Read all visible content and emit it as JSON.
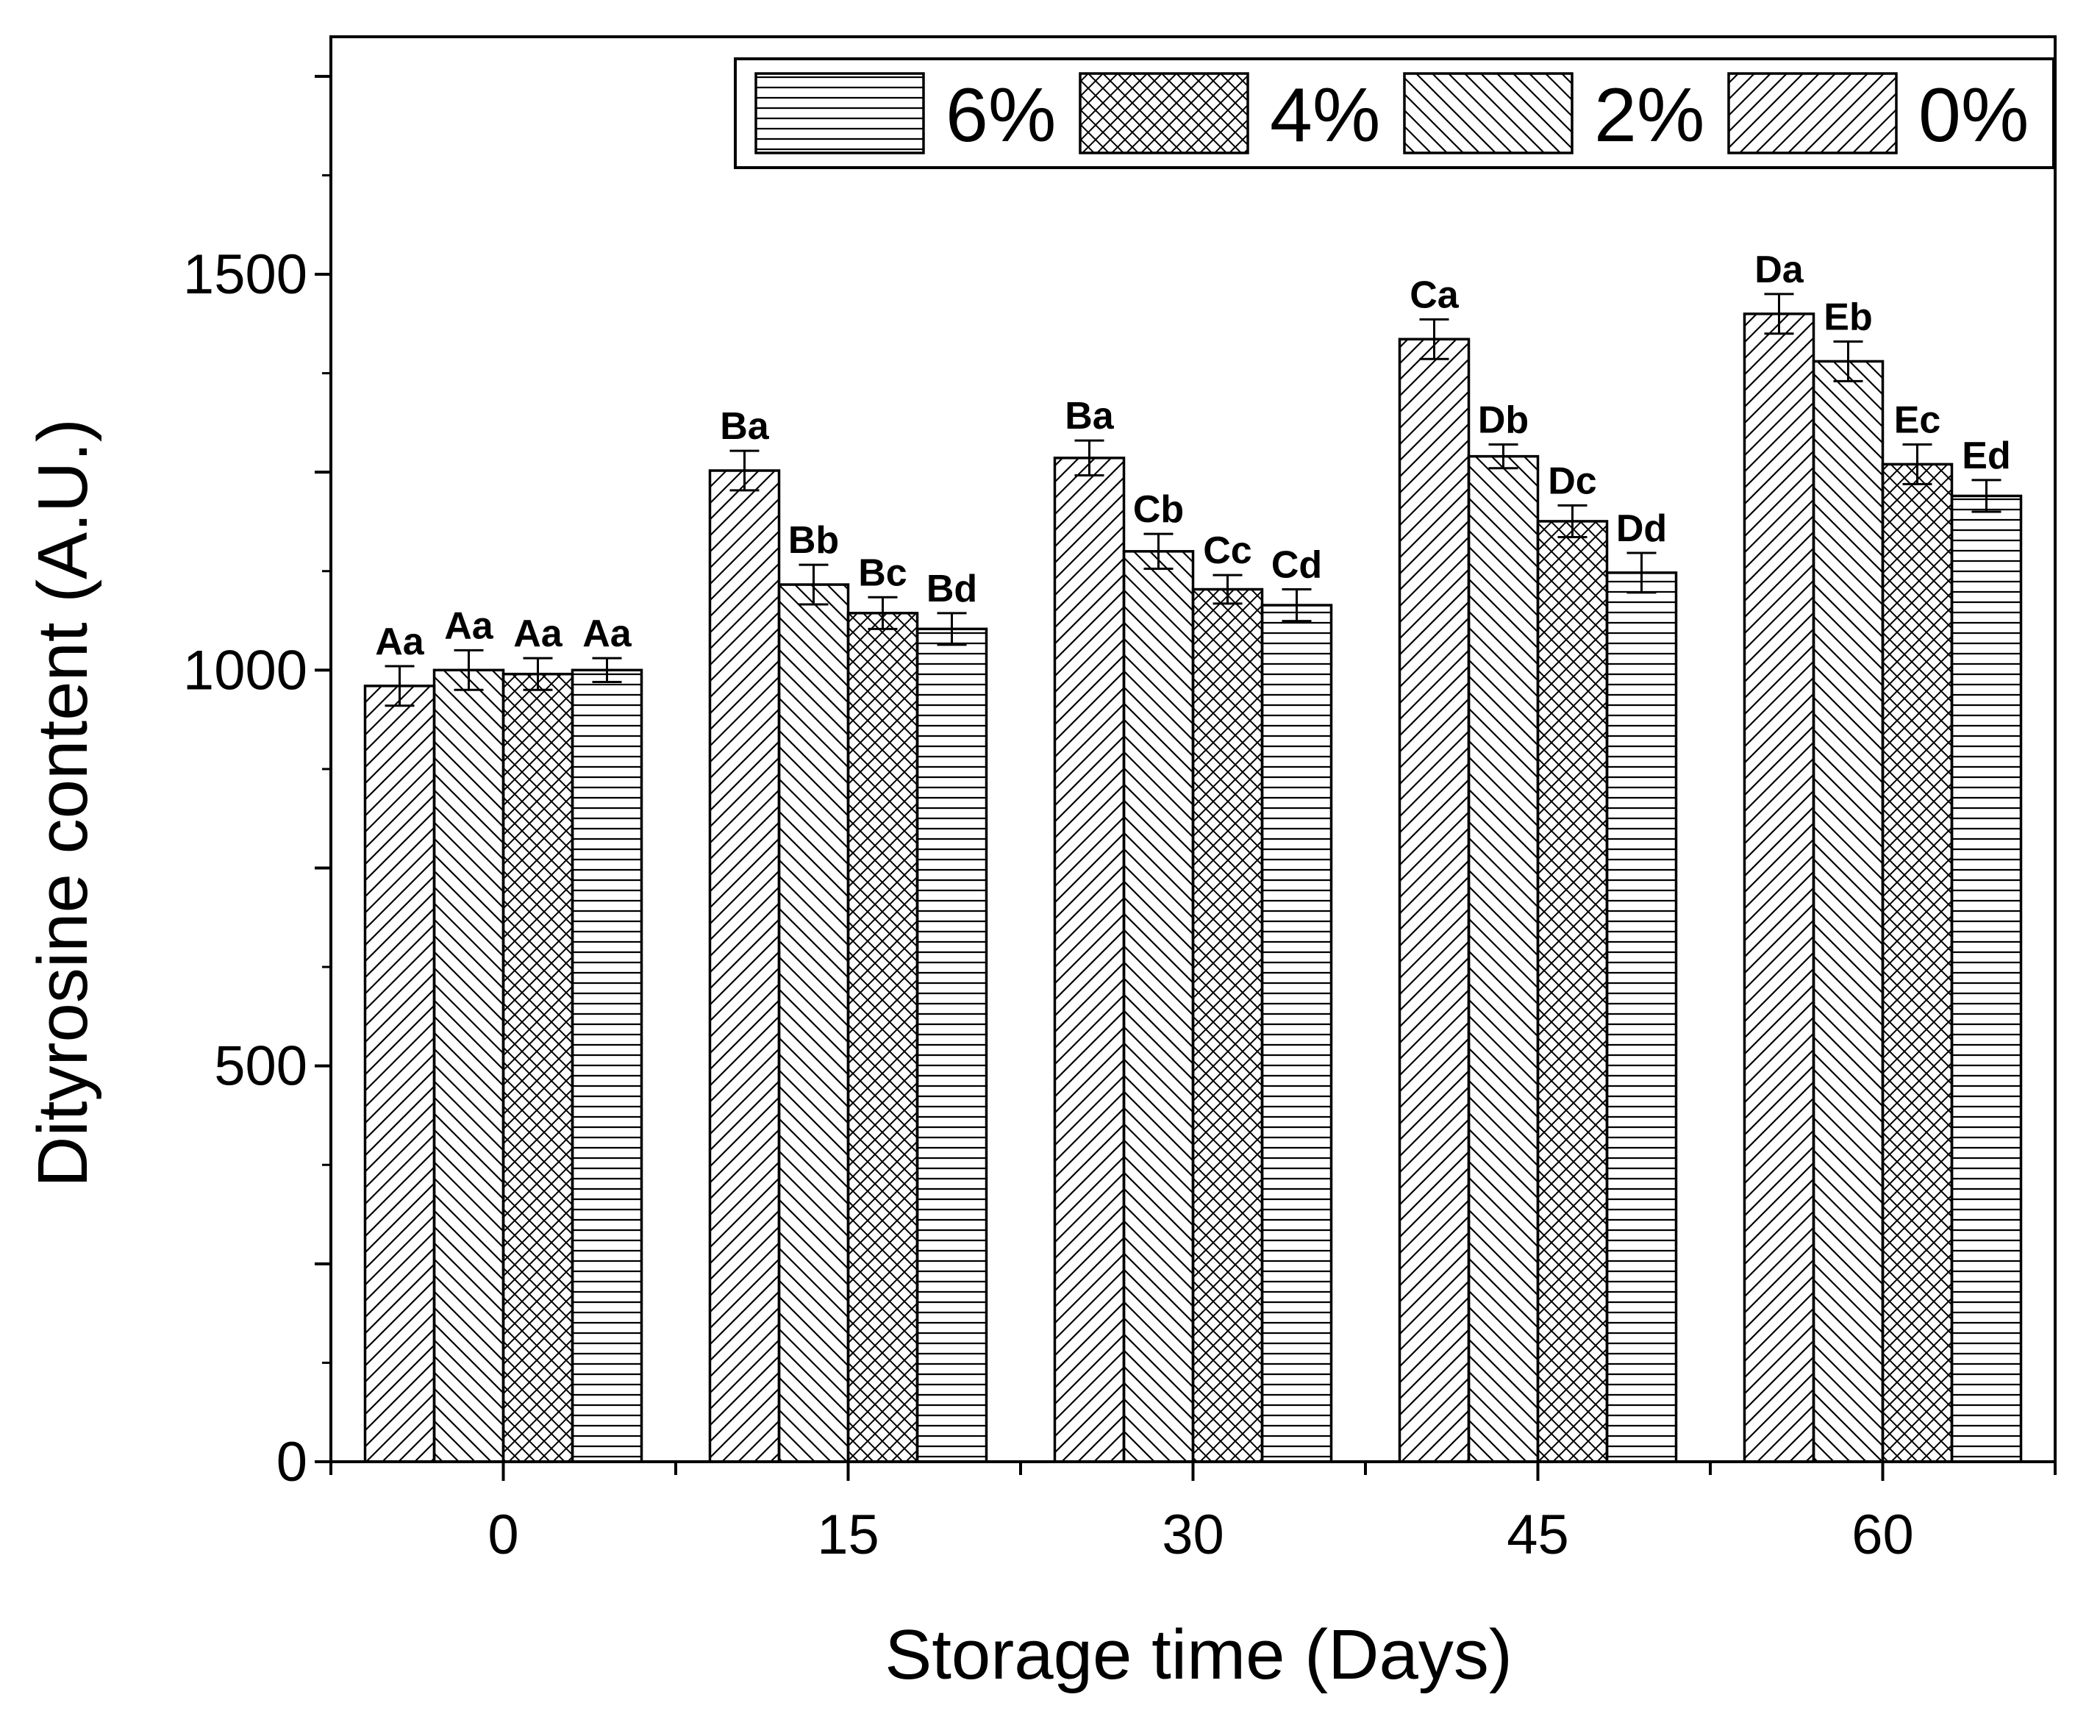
{
  "chart_data": {
    "type": "bar",
    "title": "",
    "xlabel": "Storage time (Days)",
    "ylabel": "Dityrosine content (A.U.)",
    "ylim": [
      0,
      1800
    ],
    "yticks": [
      0,
      500,
      1000,
      1500
    ],
    "categories": [
      "0",
      "15",
      "30",
      "45",
      "60"
    ],
    "grid": false,
    "legend_position": "top-right",
    "legend_order": [
      "6%",
      "4%",
      "2%",
      "0%"
    ],
    "series": [
      {
        "name": "0%",
        "pattern": "diagonal-forward",
        "values": [
          980,
          1252,
          1268,
          1418,
          1450
        ],
        "errors": [
          25,
          25,
          22,
          25,
          25
        ],
        "labels": [
          "Aa",
          "Ba",
          "Ba",
          "Ca",
          "Da"
        ]
      },
      {
        "name": "2%",
        "pattern": "diagonal-backward",
        "values": [
          1000,
          1108,
          1150,
          1270,
          1390
        ],
        "errors": [
          25,
          25,
          22,
          15,
          25
        ],
        "labels": [
          "Aa",
          "Bb",
          "Cb",
          "Db",
          "Eb"
        ]
      },
      {
        "name": "4%",
        "pattern": "crosshatch",
        "values": [
          995,
          1072,
          1102,
          1188,
          1260
        ],
        "errors": [
          20,
          20,
          18,
          20,
          25
        ],
        "labels": [
          "Aa",
          "Bc",
          "Cc",
          "Dc",
          "Ec"
        ]
      },
      {
        "name": "6%",
        "pattern": "horizontal",
        "values": [
          1000,
          1052,
          1082,
          1123,
          1220
        ],
        "errors": [
          15,
          20,
          20,
          25,
          20
        ],
        "labels": [
          "Aa",
          "Bd",
          "Cd",
          "Dd",
          "Ed"
        ]
      }
    ],
    "colors": {
      "stroke": "#000000",
      "fill": "#ffffff"
    }
  }
}
